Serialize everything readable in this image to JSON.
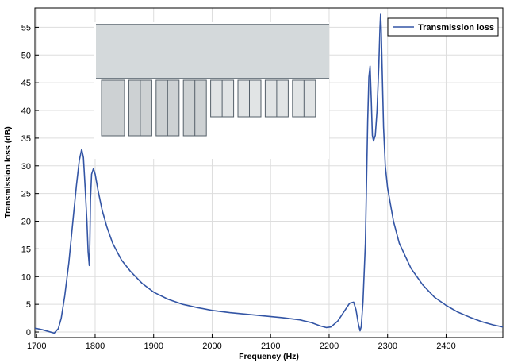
{
  "chart_data": {
    "type": "line",
    "xlabel": "Frequency (Hz)",
    "ylabel": "Transmission loss (dB)",
    "xlim": [
      1697,
      2497
    ],
    "ylim": [
      -1,
      58.5
    ],
    "x_ticks": [
      1700,
      1800,
      1900,
      2000,
      2100,
      2200,
      2300,
      2400
    ],
    "y_ticks": [
      0,
      5,
      10,
      15,
      20,
      25,
      30,
      35,
      40,
      45,
      50,
      55
    ],
    "grid": true,
    "legend_position": "top-right",
    "series": [
      {
        "name": "Transmission loss",
        "color": "#3355a5",
        "x": [
          1697,
          1710,
          1720,
          1730,
          1737,
          1742,
          1748,
          1755,
          1762,
          1768,
          1773,
          1777,
          1780,
          1783,
          1786,
          1788,
          1790,
          1791,
          1792,
          1794,
          1797,
          1800,
          1805,
          1812,
          1820,
          1830,
          1845,
          1860,
          1880,
          1900,
          1925,
          1950,
          1975,
          2000,
          2030,
          2060,
          2090,
          2120,
          2150,
          2170,
          2185,
          2195,
          2203,
          2215,
          2225,
          2235,
          2242,
          2246,
          2250,
          2253,
          2255,
          2258,
          2262,
          2266,
          2268,
          2270,
          2272,
          2274,
          2276,
          2279,
          2282,
          2285,
          2287,
          2288,
          2289,
          2291,
          2293,
          2296,
          2300,
          2310,
          2320,
          2340,
          2360,
          2380,
          2400,
          2420,
          2440,
          2460,
          2480,
          2497
        ],
        "y": [
          0.7,
          0.4,
          0.1,
          -0.2,
          0.6,
          2.5,
          6.5,
          12.5,
          20.0,
          26.5,
          31.0,
          33.0,
          31.5,
          26.0,
          20.0,
          14.5,
          12.0,
          16.0,
          24.0,
          28.5,
          29.5,
          28.5,
          25.5,
          22.0,
          19.0,
          16.0,
          13.0,
          11.0,
          8.8,
          7.2,
          5.9,
          5.0,
          4.4,
          3.9,
          3.5,
          3.2,
          2.9,
          2.6,
          2.2,
          1.7,
          1.1,
          0.8,
          0.9,
          2.0,
          3.6,
          5.2,
          5.4,
          4.0,
          1.5,
          0.2,
          1.0,
          5.5,
          16.0,
          38.0,
          46.0,
          48.0,
          42.0,
          35.5,
          34.5,
          35.5,
          40.0,
          48.0,
          55.0,
          57.5,
          55.0,
          46.0,
          37.0,
          30.0,
          26.0,
          20.0,
          16.0,
          11.5,
          8.5,
          6.3,
          4.8,
          3.6,
          2.7,
          1.9,
          1.3,
          0.9
        ]
      }
    ]
  }
}
